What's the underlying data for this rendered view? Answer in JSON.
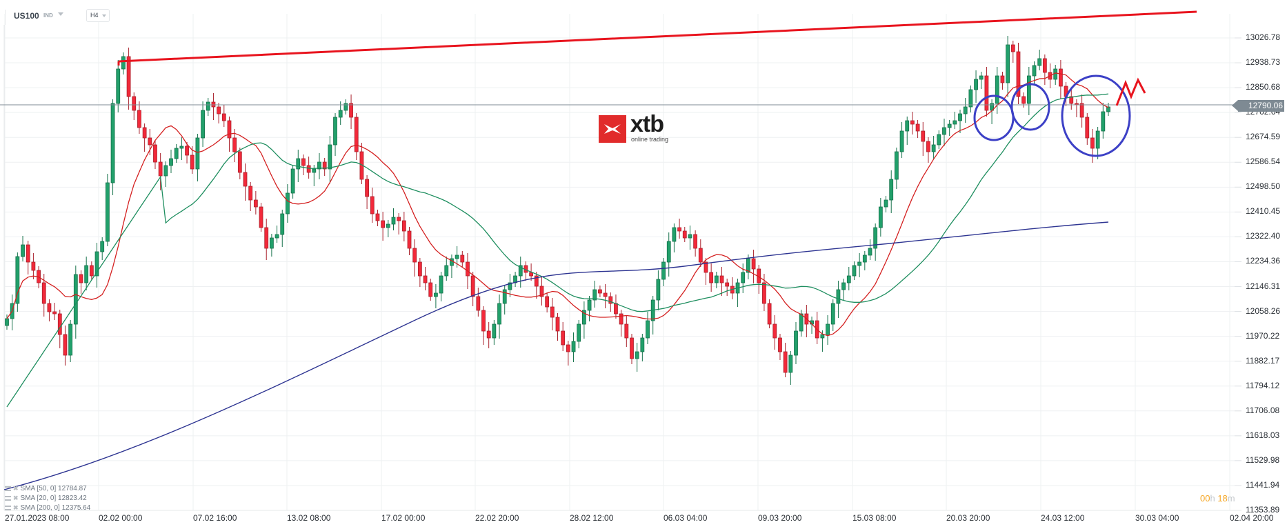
{
  "header": {
    "symbol": "US100",
    "symbol_type": "IND",
    "timeframe": "H4"
  },
  "logo": {
    "brand": "xtb",
    "tagline": "online trading",
    "brand_color": "#e12b2b"
  },
  "price_tag": {
    "value": "12790.06",
    "color": "#7e8a93"
  },
  "timer": {
    "hours": "00",
    "hours_unit": "h",
    "minutes": "18",
    "minutes_unit": "m"
  },
  "legend": [
    {
      "label": "SMA [50, 0] 12784.87",
      "color": "#1e8e5f"
    },
    {
      "label": "SMA [20, 0] 12823.42",
      "color": "#d42020"
    },
    {
      "label": "SMA [200, 0] 12375.64",
      "color": "#2e3592"
    }
  ],
  "colors": {
    "bull": "#22a06b",
    "bear": "#f2293a",
    "sma20": "#d42020",
    "sma50": "#1e8e5f",
    "sma200": "#2e3592",
    "trendline": "#e8141e",
    "annotation": "#3c40c6",
    "grid": "#eef0f2"
  },
  "chart_data": {
    "type": "candlestick",
    "title": "US100 IND H4",
    "xlabel": "",
    "ylabel": "",
    "ylim": [
      11353.89,
      13070
    ],
    "grid": true,
    "legend_position": "bottom-left",
    "y_ticks": [
      "13026.78",
      "12938.73",
      "12850.68",
      "12762.64",
      "12674.59",
      "12586.54",
      "12498.50",
      "12410.45",
      "12322.40",
      "12234.36",
      "12146.31",
      "12058.26",
      "11970.22",
      "11882.17",
      "11794.12",
      "11706.08",
      "11618.03",
      "11529.98",
      "11441.94",
      "11353.89"
    ],
    "x_ticks": [
      "27.01.2023  08:00",
      "02.02  00:00",
      "07.02  16:00",
      "13.02  08:00",
      "17.02  00:00",
      "22.02  20:00",
      "28.02  12:00",
      "06.03  04:00",
      "09.03  20:00",
      "15.03  08:00",
      "20.03  20:00",
      "24.03  12:00",
      "30.03  04:00",
      "02.04  20:00"
    ],
    "last_price": 12790.06,
    "series": [
      {
        "name": "SMA [50, 0]",
        "last": 12784.87
      },
      {
        "name": "SMA [20, 0]",
        "last": 12823.42
      },
      {
        "name": "SMA [200, 0]",
        "last": 12375.64
      }
    ],
    "annotations": [
      {
        "type": "trendline",
        "from": [
          "02.02",
          12945
        ],
        "to": [
          "30.03",
          13060
        ],
        "color": "red"
      },
      {
        "type": "ellipse",
        "near": "22.03",
        "color": "blue"
      },
      {
        "type": "ellipse",
        "near": "23.03",
        "color": "blue"
      },
      {
        "type": "ellipse",
        "near": "27.03",
        "color": "blue"
      },
      {
        "type": "arrow-up",
        "near": "28.03",
        "color": "red"
      }
    ]
  }
}
